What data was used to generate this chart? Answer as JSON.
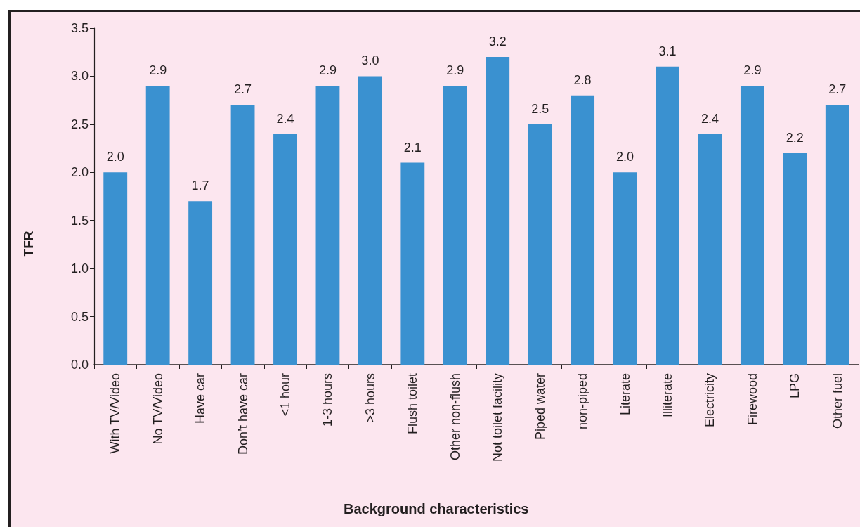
{
  "chart_data": {
    "type": "bar",
    "xlabel": "Background characteristics",
    "ylabel": "TFR",
    "categories": [
      "With TV/Video",
      "No TV/Video",
      "Have car",
      "Don’t have car",
      "<1 hour",
      "1-3 hours",
      ">3 hours",
      "Flush toilet",
      "Other non-flush",
      "Not toilet facility",
      "Piped water",
      "non-piped",
      "Literate",
      "Illiterate",
      "Electricity",
      "Firewood",
      "LPG",
      "Other fuel"
    ],
    "values": [
      2.0,
      2.9,
      1.7,
      2.7,
      2.4,
      2.9,
      3.0,
      2.1,
      2.9,
      3.2,
      2.5,
      2.8,
      2.0,
      3.1,
      2.4,
      2.9,
      2.2,
      2.7
    ],
    "value_labels": [
      "2.0",
      "2.9",
      "1.7",
      "2.7",
      "2.4",
      "2.9",
      "3.0",
      "2.1",
      "2.9",
      "3.2",
      "2.5",
      "2.8",
      "2.0",
      "3.1",
      "2.4",
      "2.9",
      "2.2",
      "2.7"
    ],
    "color": "#3a91d0",
    "ylim": [
      0,
      3.5
    ],
    "yticks": [
      {
        "value": 0,
        "label": "0.0"
      },
      0.5,
      {
        "value": 1,
        "label": "1.0"
      },
      1.5,
      {
        "value": 2,
        "label": "2.0"
      },
      2.5,
      {
        "value": 3,
        "label": "3.0"
      },
      3.5
    ],
    "grid": false
  }
}
